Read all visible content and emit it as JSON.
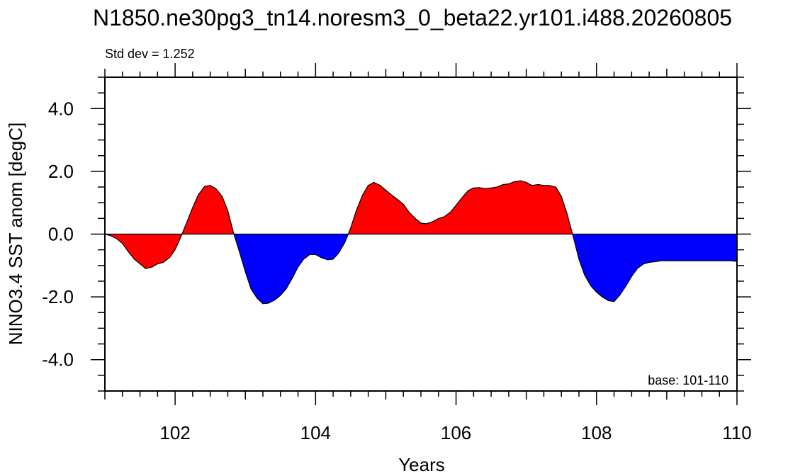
{
  "chart_data": {
    "type": "area",
    "title": "N1850.ne30pg3_tn14.noresm3_0_beta22.yr101.i488.20260805",
    "subtitle": "Std dev = 1.252",
    "annotation": "base: 101-110",
    "xlabel": "Years",
    "ylabel": "NINO3.4 SST anom [degC]",
    "xlim": [
      101,
      110
    ],
    "ylim": [
      -5,
      5
    ],
    "x_ticks": [
      102,
      104,
      106,
      108,
      110
    ],
    "x_tick_labels": [
      "102",
      "104",
      "106",
      "108",
      "110"
    ],
    "y_ticks": [
      4,
      2,
      0,
      -2,
      -4
    ],
    "y_tick_labels": [
      "4.0",
      "2.0",
      "0.0",
      "-2.0",
      "-4.0"
    ],
    "grid": false,
    "colors": {
      "positive": "#ff0000",
      "negative": "#0000ff",
      "line": "#000000"
    },
    "series": [
      {
        "x": [
          101.0,
          101.08,
          101.17,
          101.25,
          101.33,
          101.42,
          101.5,
          101.58,
          101.67,
          101.75,
          101.83,
          101.92,
          102.0,
          102.08,
          102.17,
          102.25,
          102.33,
          102.42,
          102.5,
          102.58,
          102.67,
          102.75,
          102.83,
          102.92,
          103.0,
          103.08,
          103.17,
          103.25,
          103.33,
          103.42,
          103.5,
          103.58,
          103.67,
          103.75,
          103.83,
          103.92,
          104.0,
          104.08,
          104.17,
          104.25,
          104.33,
          104.42,
          104.5,
          104.58,
          104.67,
          104.75,
          104.83,
          104.92,
          105.0,
          105.08,
          105.17,
          105.25,
          105.33,
          105.42,
          105.5,
          105.58,
          105.67,
          105.75,
          105.83,
          105.92,
          106.0,
          106.08,
          106.17,
          106.25,
          106.33,
          106.42,
          106.5,
          106.58,
          106.67,
          106.75,
          106.83,
          106.92,
          107.0,
          107.08,
          107.17,
          107.25,
          107.33,
          107.42,
          107.5,
          107.58,
          107.67,
          107.75,
          107.83,
          107.92,
          108.0,
          108.08,
          108.17,
          108.25,
          108.33,
          108.42,
          108.5,
          108.58,
          108.67,
          108.75,
          108.83,
          108.92,
          109.0,
          109.08,
          109.17,
          109.25,
          109.33,
          109.42,
          109.5,
          109.58,
          109.67,
          109.75,
          109.83,
          109.92,
          110.0
        ],
        "y": [
          0.0,
          -0.05,
          -0.15,
          -0.3,
          -0.55,
          -0.8,
          -0.95,
          -1.1,
          -1.05,
          -0.95,
          -0.9,
          -0.75,
          -0.5,
          -0.1,
          0.4,
          0.85,
          1.25,
          1.52,
          1.55,
          1.45,
          1.2,
          0.75,
          0.05,
          -0.6,
          -1.2,
          -1.75,
          -2.05,
          -2.22,
          -2.2,
          -2.1,
          -1.95,
          -1.75,
          -1.4,
          -1.05,
          -0.8,
          -0.65,
          -0.65,
          -0.75,
          -0.82,
          -0.8,
          -0.6,
          -0.25,
          0.2,
          0.75,
          1.25,
          1.55,
          1.65,
          1.55,
          1.4,
          1.25,
          1.1,
          0.95,
          0.7,
          0.5,
          0.35,
          0.33,
          0.4,
          0.5,
          0.55,
          0.7,
          0.92,
          1.15,
          1.38,
          1.47,
          1.48,
          1.45,
          1.47,
          1.5,
          1.58,
          1.6,
          1.67,
          1.7,
          1.65,
          1.55,
          1.58,
          1.55,
          1.55,
          1.5,
          1.2,
          0.65,
          -0.1,
          -0.8,
          -1.3,
          -1.65,
          -1.85,
          -2.0,
          -2.12,
          -2.15,
          -1.95,
          -1.65,
          -1.35,
          -1.1,
          -0.95,
          -0.9,
          -0.88,
          -0.85,
          -0.85,
          -0.85,
          -0.85,
          -0.85,
          -0.85,
          -0.85,
          -0.85,
          -0.85,
          -0.85,
          -0.85,
          -0.85,
          -0.85,
          -0.87
        ]
      }
    ]
  }
}
